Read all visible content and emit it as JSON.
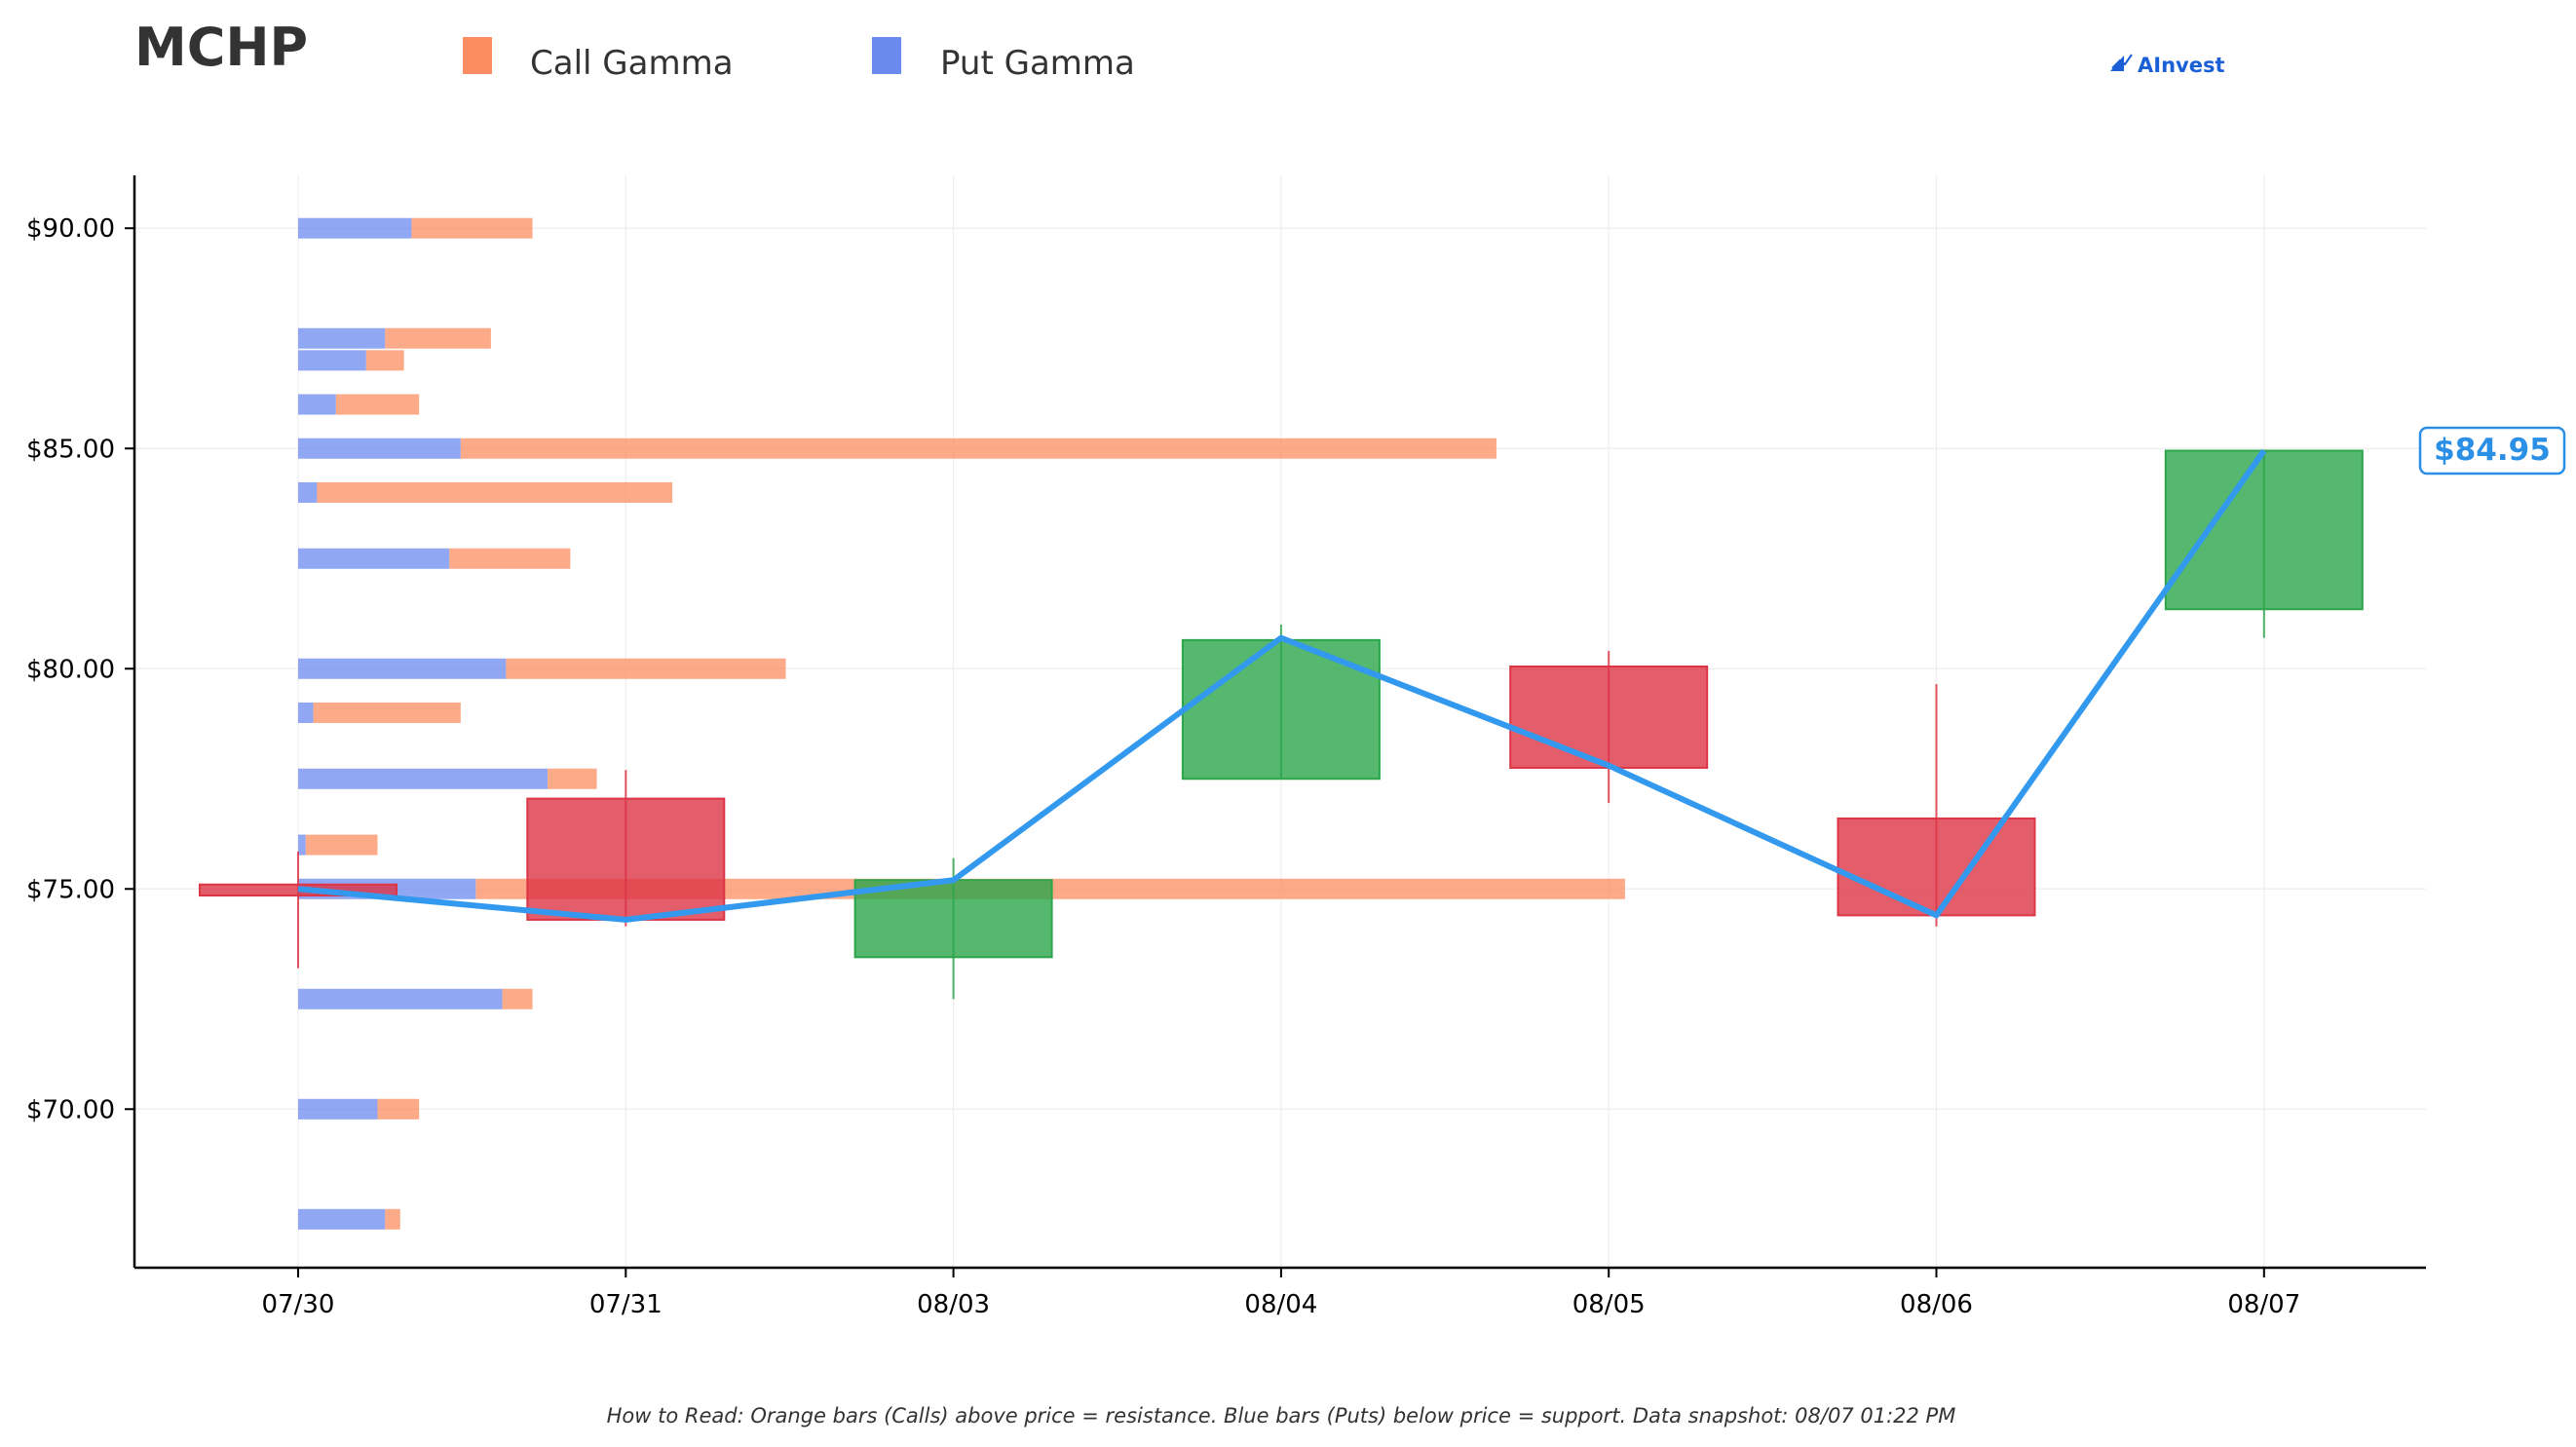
{
  "chart_data": {
    "type": "candlestick_with_gamma_bars",
    "title": "MCHP",
    "brand": "AInvest",
    "legend": [
      {
        "name": "Call Gamma",
        "color": "#fc8d62"
      },
      {
        "name": "Put Gamma",
        "color": "#6b8af0"
      }
    ],
    "categories": [
      "07/30",
      "07/31",
      "08/03",
      "08/04",
      "08/05",
      "08/06",
      "08/07"
    ],
    "y_ticks": [
      {
        "value": 70,
        "label": "$70.00"
      },
      {
        "value": 75,
        "label": "$75.00"
      },
      {
        "value": 80,
        "label": "$80.00"
      },
      {
        "value": 85,
        "label": "$85.00"
      },
      {
        "value": 90,
        "label": "$90.00"
      }
    ],
    "ylim": [
      66.4,
      91.2
    ],
    "grid": true,
    "candles": [
      {
        "date": "07/30",
        "open": 75.1,
        "close": 74.85,
        "high": 75.85,
        "low": 73.2
      },
      {
        "date": "07/31",
        "open": 77.05,
        "close": 74.3,
        "high": 77.7,
        "low": 74.15
      },
      {
        "date": "08/03",
        "open": 73.45,
        "close": 75.2,
        "high": 75.7,
        "low": 72.5
      },
      {
        "date": "08/04",
        "open": 77.5,
        "close": 80.65,
        "high": 81.0,
        "low": 77.5
      },
      {
        "date": "08/05",
        "open": 80.05,
        "close": 77.75,
        "high": 80.4,
        "low": 76.95
      },
      {
        "date": "08/06",
        "open": 76.6,
        "close": 74.4,
        "high": 79.65,
        "low": 74.15
      },
      {
        "date": "08/07",
        "open": 81.35,
        "close": 84.95,
        "high": 84.95,
        "low": 80.7
      }
    ],
    "close_line": [
      75.0,
      74.3,
      75.2,
      80.7,
      77.8,
      74.4,
      84.95
    ],
    "gamma_strikes": [
      {
        "strike": 90.0,
        "put": 0.3,
        "call": 0.32
      },
      {
        "strike": 87.5,
        "put": 0.23,
        "call": 0.28
      },
      {
        "strike": 87.0,
        "put": 0.18,
        "call": 0.1
      },
      {
        "strike": 86.0,
        "put": 0.1,
        "call": 0.22
      },
      {
        "strike": 85.0,
        "put": 0.43,
        "call": 2.74
      },
      {
        "strike": 84.0,
        "put": 0.05,
        "call": 0.94
      },
      {
        "strike": 82.5,
        "put": 0.4,
        "call": 0.32
      },
      {
        "strike": 80.0,
        "put": 0.55,
        "call": 0.74
      },
      {
        "strike": 79.0,
        "put": 0.04,
        "call": 0.39
      },
      {
        "strike": 77.5,
        "put": 0.66,
        "call": 0.13
      },
      {
        "strike": 76.0,
        "put": 0.02,
        "call": 0.19
      },
      {
        "strike": 75.0,
        "put": 0.47,
        "call": 3.04
      },
      {
        "strike": 72.5,
        "put": 0.54,
        "call": 0.08
      },
      {
        "strike": 70.0,
        "put": 0.21,
        "call": 0.11
      },
      {
        "strike": 67.5,
        "put": 0.23,
        "call": 0.04
      }
    ],
    "current_price": {
      "value": 84.95,
      "label": "$84.95"
    },
    "footnote": "How to Read: Orange bars (Calls) above price = resistance. Blue bars (Puts) below price = support. Data snapshot: 08/07 01:22 PM"
  }
}
